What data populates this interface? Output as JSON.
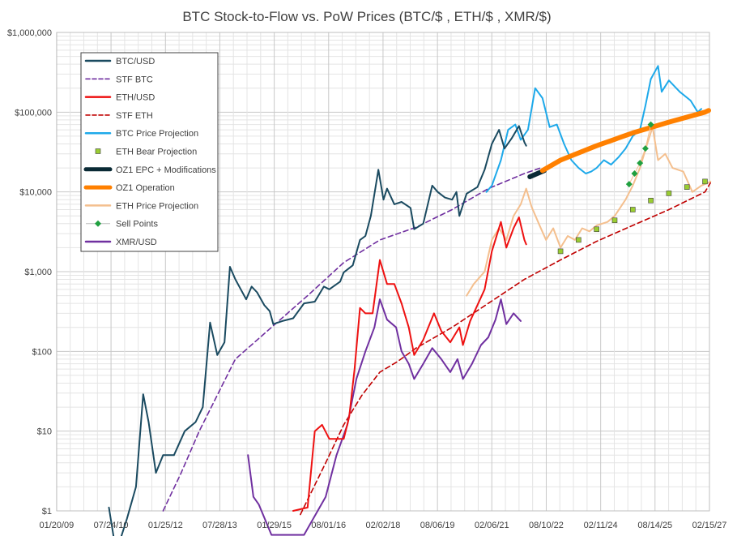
{
  "chart_data": {
    "type": "line",
    "title": "BTC Stock-to-Flow vs. PoW Prices (BTC/$ , ETH/$ , XMR/$)",
    "y_scale": "log",
    "ylim": [
      1,
      1000000
    ],
    "xlim": [
      "2009-01-20",
      "2027-02-15"
    ],
    "y_ticks": [
      {
        "value": 1,
        "label": "$1"
      },
      {
        "value": 10,
        "label": "$10"
      },
      {
        "value": 100,
        "label": "$100"
      },
      {
        "value": 1000,
        "label": "$1,000"
      },
      {
        "value": 10000,
        "label": "$10,000"
      },
      {
        "value": 100000,
        "label": "$100,000"
      },
      {
        "value": 1000000,
        "label": "$1,000,000"
      }
    ],
    "x_ticks": [
      {
        "date": "2009-01-20",
        "label": "01/20/09"
      },
      {
        "date": "2010-07-24",
        "label": "07/24/10"
      },
      {
        "date": "2012-01-25",
        "label": "01/25/12"
      },
      {
        "date": "2013-07-28",
        "label": "07/28/13"
      },
      {
        "date": "2015-01-29",
        "label": "01/29/15"
      },
      {
        "date": "2016-08-01",
        "label": "08/01/16"
      },
      {
        "date": "2018-02-02",
        "label": "02/02/18"
      },
      {
        "date": "2019-08-06",
        "label": "08/06/19"
      },
      {
        "date": "2021-02-06",
        "label": "02/06/21"
      },
      {
        "date": "2022-08-10",
        "label": "08/10/22"
      },
      {
        "date": "2024-02-11",
        "label": "02/11/24"
      },
      {
        "date": "2025-08-14",
        "label": "08/14/25"
      },
      {
        "date": "2027-02-15",
        "label": "02/15/27"
      }
    ],
    "grid": true,
    "legend_position": "top-left",
    "series": [
      {
        "name": "BTC/USD",
        "color": "#1a4a60",
        "style": "solid",
        "points": [
          [
            2010.5,
            1.1
          ],
          [
            2010.7,
            0.3
          ],
          [
            2011.0,
            0.8
          ],
          [
            2011.25,
            2
          ],
          [
            2011.45,
            29
          ],
          [
            2011.6,
            13
          ],
          [
            2011.8,
            3
          ],
          [
            2012.0,
            5
          ],
          [
            2012.3,
            5
          ],
          [
            2012.6,
            10
          ],
          [
            2012.9,
            13
          ],
          [
            2013.1,
            20
          ],
          [
            2013.3,
            230
          ],
          [
            2013.5,
            90
          ],
          [
            2013.7,
            130
          ],
          [
            2013.85,
            1150
          ],
          [
            2014.0,
            800
          ],
          [
            2014.15,
            600
          ],
          [
            2014.3,
            450
          ],
          [
            2014.45,
            650
          ],
          [
            2014.6,
            550
          ],
          [
            2014.8,
            380
          ],
          [
            2014.95,
            320
          ],
          [
            2015.05,
            220
          ],
          [
            2015.3,
            240
          ],
          [
            2015.6,
            260
          ],
          [
            2015.9,
            400
          ],
          [
            2016.2,
            420
          ],
          [
            2016.45,
            650
          ],
          [
            2016.6,
            600
          ],
          [
            2016.9,
            750
          ],
          [
            2017.0,
            980
          ],
          [
            2017.25,
            1200
          ],
          [
            2017.45,
            2500
          ],
          [
            2017.6,
            2800
          ],
          [
            2017.75,
            5000
          ],
          [
            2017.96,
            19000
          ],
          [
            2018.1,
            8000
          ],
          [
            2018.2,
            11000
          ],
          [
            2018.4,
            7000
          ],
          [
            2018.6,
            7500
          ],
          [
            2018.85,
            6300
          ],
          [
            2018.95,
            3400
          ],
          [
            2019.2,
            4000
          ],
          [
            2019.45,
            12000
          ],
          [
            2019.6,
            10000
          ],
          [
            2019.8,
            8500
          ],
          [
            2020.0,
            8000
          ],
          [
            2020.12,
            10000
          ],
          [
            2020.2,
            5000
          ],
          [
            2020.4,
            9500
          ],
          [
            2020.7,
            11500
          ],
          [
            2020.9,
            19000
          ],
          [
            2021.1,
            40000
          ],
          [
            2021.3,
            60000
          ],
          [
            2021.45,
            35000
          ],
          [
            2021.65,
            47000
          ],
          [
            2021.85,
            67000
          ],
          [
            2022.0,
            42000
          ],
          [
            2022.05,
            38000
          ]
        ]
      },
      {
        "name": "STF BTC",
        "color": "#7030a0",
        "style": "dash",
        "points": [
          [
            2012.0,
            1
          ],
          [
            2012.5,
            3
          ],
          [
            2013.0,
            10
          ],
          [
            2014.0,
            80
          ],
          [
            2015.0,
            200
          ],
          [
            2016.0,
            500
          ],
          [
            2017.0,
            1300
          ],
          [
            2018.0,
            2500
          ],
          [
            2019.0,
            3600
          ],
          [
            2020.0,
            6000
          ],
          [
            2021.0,
            11000
          ],
          [
            2022.0,
            17000
          ],
          [
            2022.45,
            20000
          ]
        ]
      },
      {
        "name": "ETH/USD",
        "color": "#ee1111",
        "style": "solid",
        "points": [
          [
            2015.6,
            1
          ],
          [
            2016.0,
            1.1
          ],
          [
            2016.2,
            10
          ],
          [
            2016.4,
            12
          ],
          [
            2016.6,
            8
          ],
          [
            2016.9,
            8
          ],
          [
            2017.0,
            8
          ],
          [
            2017.15,
            15
          ],
          [
            2017.3,
            60
          ],
          [
            2017.45,
            350
          ],
          [
            2017.6,
            300
          ],
          [
            2017.8,
            300
          ],
          [
            2018.0,
            1400
          ],
          [
            2018.2,
            700
          ],
          [
            2018.4,
            700
          ],
          [
            2018.6,
            400
          ],
          [
            2018.8,
            200
          ],
          [
            2018.95,
            90
          ],
          [
            2019.2,
            140
          ],
          [
            2019.5,
            300
          ],
          [
            2019.7,
            180
          ],
          [
            2019.95,
            130
          ],
          [
            2020.2,
            200
          ],
          [
            2020.3,
            120
          ],
          [
            2020.5,
            240
          ],
          [
            2020.7,
            380
          ],
          [
            2020.9,
            600
          ],
          [
            2021.1,
            1800
          ],
          [
            2021.35,
            4200
          ],
          [
            2021.5,
            2000
          ],
          [
            2021.7,
            3500
          ],
          [
            2021.85,
            4800
          ],
          [
            2022.0,
            2500
          ],
          [
            2022.05,
            2200
          ]
        ]
      },
      {
        "name": "STF ETH",
        "color": "#c00000",
        "style": "dash",
        "points": [
          [
            2015.8,
            0.9
          ],
          [
            2016.5,
            4
          ],
          [
            2017.0,
            12
          ],
          [
            2017.5,
            28
          ],
          [
            2018.0,
            55
          ],
          [
            2018.5,
            75
          ],
          [
            2019.0,
            110
          ],
          [
            2020.0,
            200
          ],
          [
            2021.0,
            400
          ],
          [
            2022.0,
            800
          ],
          [
            2023.0,
            1400
          ],
          [
            2024.0,
            2400
          ],
          [
            2025.0,
            3800
          ],
          [
            2026.0,
            6000
          ],
          [
            2027.0,
            10000
          ],
          [
            2027.15,
            13000
          ]
        ]
      },
      {
        "name": "BTC Price Projection",
        "color": "#1ea9ea",
        "style": "solid",
        "points": [
          [
            2020.95,
            10000
          ],
          [
            2021.1,
            12000
          ],
          [
            2021.35,
            25000
          ],
          [
            2021.55,
            60000
          ],
          [
            2021.75,
            70000
          ],
          [
            2021.9,
            45000
          ],
          [
            2022.1,
            60000
          ],
          [
            2022.3,
            200000
          ],
          [
            2022.5,
            150000
          ],
          [
            2022.7,
            65000
          ],
          [
            2022.9,
            70000
          ],
          [
            2023.1,
            40000
          ],
          [
            2023.3,
            25000
          ],
          [
            2023.5,
            20000
          ],
          [
            2023.7,
            17000
          ],
          [
            2023.85,
            18000
          ],
          [
            2024.0,
            20000
          ],
          [
            2024.2,
            25000
          ],
          [
            2024.4,
            22000
          ],
          [
            2024.6,
            27000
          ],
          [
            2024.8,
            35000
          ],
          [
            2025.0,
            50000
          ],
          [
            2025.2,
            60000
          ],
          [
            2025.35,
            120000
          ],
          [
            2025.5,
            260000
          ],
          [
            2025.7,
            380000
          ],
          [
            2025.8,
            180000
          ],
          [
            2026.0,
            250000
          ],
          [
            2026.3,
            180000
          ],
          [
            2026.6,
            140000
          ],
          [
            2026.8,
            100000
          ],
          [
            2026.9,
            110000
          ]
        ]
      },
      {
        "name": "ETH Bear Projection",
        "color": "#9acd32",
        "style": "square-markers",
        "points": [
          [
            2023.0,
            1800
          ],
          [
            2023.5,
            2500
          ],
          [
            2024.0,
            3400
          ],
          [
            2024.5,
            4400
          ],
          [
            2025.0,
            6000
          ],
          [
            2025.5,
            7800
          ],
          [
            2026.0,
            9600
          ],
          [
            2026.5,
            11500
          ],
          [
            2027.0,
            13500
          ]
        ]
      },
      {
        "name": "OZ1 EPC + Modifications",
        "color": "#0a2a35",
        "style": "thick",
        "points": [
          [
            2022.15,
            15500
          ],
          [
            2022.55,
            18500
          ]
        ]
      },
      {
        "name": "OZ1 Operation",
        "color": "#ff8000",
        "style": "thick",
        "points": [
          [
            2022.5,
            18500
          ],
          [
            2023.0,
            25000
          ],
          [
            2024.0,
            38000
          ],
          [
            2025.0,
            55000
          ],
          [
            2026.0,
            75000
          ],
          [
            2027.0,
            100000
          ],
          [
            2027.1,
            105000
          ]
        ]
      },
      {
        "name": "ETH Price Projection",
        "color": "#f4bf8e",
        "style": "solid",
        "points": [
          [
            2020.4,
            500
          ],
          [
            2020.6,
            700
          ],
          [
            2020.9,
            1000
          ],
          [
            2021.1,
            2500
          ],
          [
            2021.3,
            3500
          ],
          [
            2021.5,
            2500
          ],
          [
            2021.7,
            5000
          ],
          [
            2021.9,
            7000
          ],
          [
            2022.05,
            11000
          ],
          [
            2022.2,
            6500
          ],
          [
            2022.4,
            4000
          ],
          [
            2022.6,
            2500
          ],
          [
            2022.8,
            3500
          ],
          [
            2023.0,
            2000
          ],
          [
            2023.2,
            2800
          ],
          [
            2023.4,
            2500
          ],
          [
            2023.6,
            3500
          ],
          [
            2023.8,
            3200
          ],
          [
            2024.0,
            3800
          ],
          [
            2024.3,
            4200
          ],
          [
            2024.5,
            5000
          ],
          [
            2024.8,
            8000
          ],
          [
            2025.0,
            12000
          ],
          [
            2025.2,
            20000
          ],
          [
            2025.4,
            40000
          ],
          [
            2025.55,
            65000
          ],
          [
            2025.7,
            25000
          ],
          [
            2025.9,
            30000
          ],
          [
            2026.1,
            20000
          ],
          [
            2026.4,
            18000
          ],
          [
            2026.65,
            10000
          ],
          [
            2026.9,
            12000
          ],
          [
            2027.15,
            13500
          ]
        ]
      },
      {
        "name": "Sell Points",
        "color": "#20a040",
        "style": "diamond-markers",
        "points": [
          [
            2024.9,
            12500
          ],
          [
            2025.05,
            17000
          ],
          [
            2025.2,
            23000
          ],
          [
            2025.35,
            35000
          ],
          [
            2025.5,
            70000
          ]
        ]
      },
      {
        "name": "XMR/USD",
        "color": "#7030a0",
        "style": "solid",
        "points": [
          [
            2014.35,
            5
          ],
          [
            2014.5,
            1.5
          ],
          [
            2014.65,
            1.2
          ],
          [
            2015.0,
            0.5
          ],
          [
            2015.9,
            0.5
          ],
          [
            2016.5,
            1.5
          ],
          [
            2016.8,
            5
          ],
          [
            2017.1,
            12
          ],
          [
            2017.35,
            45
          ],
          [
            2017.6,
            100
          ],
          [
            2017.85,
            200
          ],
          [
            2018.0,
            450
          ],
          [
            2018.2,
            250
          ],
          [
            2018.45,
            200
          ],
          [
            2018.6,
            100
          ],
          [
            2018.8,
            70
          ],
          [
            2018.95,
            45
          ],
          [
            2019.2,
            70
          ],
          [
            2019.45,
            110
          ],
          [
            2019.7,
            80
          ],
          [
            2019.95,
            55
          ],
          [
            2020.15,
            80
          ],
          [
            2020.3,
            45
          ],
          [
            2020.55,
            70
          ],
          [
            2020.8,
            120
          ],
          [
            2021.0,
            150
          ],
          [
            2021.2,
            250
          ],
          [
            2021.35,
            450
          ],
          [
            2021.5,
            220
          ],
          [
            2021.7,
            300
          ],
          [
            2021.9,
            240
          ]
        ]
      }
    ]
  }
}
